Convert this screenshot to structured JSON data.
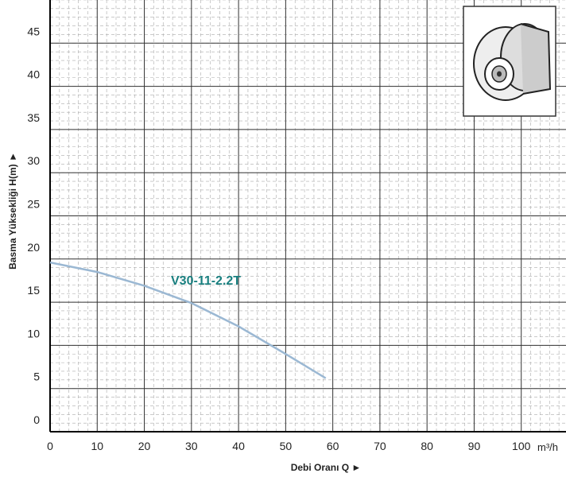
{
  "chart_data": {
    "type": "line",
    "x_label": "Debi Oranı Q  ►",
    "y_label": "Basma Yüksekliği H(m)  ►",
    "x_unit": "m³/h",
    "x": [
      0,
      10,
      20,
      30,
      40,
      50,
      58.5
    ],
    "series": [
      {
        "name": "V30-11-2.2T",
        "color": "#9bb8d3",
        "label_color": "#1a8080",
        "values": [
          19.6,
          18.5,
          16.9,
          14.9,
          12.2,
          9.0,
          6.2
        ]
      }
    ],
    "xlim": [
      0,
      110
    ],
    "ylim": [
      0,
      50
    ],
    "xticks": [
      0,
      10,
      20,
      30,
      40,
      50,
      60,
      70,
      80,
      90,
      100
    ],
    "yticks": [
      0,
      5,
      10,
      15,
      20,
      25,
      30,
      35,
      40,
      45
    ],
    "grid": true,
    "minor_grid": true
  }
}
